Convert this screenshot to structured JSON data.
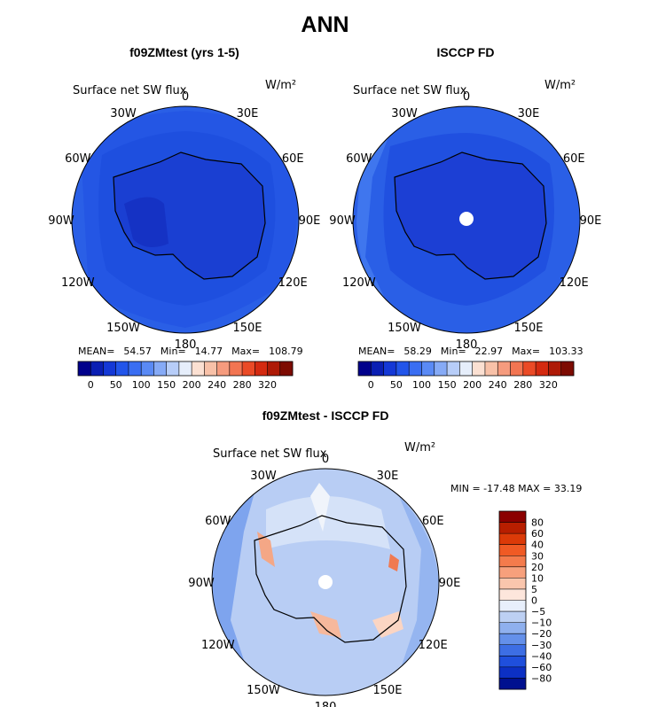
{
  "title": "ANN",
  "panels": [
    {
      "title": "f09ZMtest (yrs 1-5)",
      "variable": "Surface net SW flux",
      "units": "W/m²",
      "stats": {
        "mean_label": "MEAN=",
        "mean": "54.57",
        "min_label": "Min=",
        "min": "14.77",
        "max_label": "Max=",
        "max": "108.79"
      }
    },
    {
      "title": "ISCCP FD",
      "variable": "Surface net SW flux",
      "units": "W/m²",
      "stats": {
        "mean_label": "MEAN=",
        "mean": "58.29",
        "min_label": "Min=",
        "min": "22.97",
        "max_label": "Max=",
        "max": "103.33"
      }
    },
    {
      "title": "f09ZMtest - ISCCP FD",
      "variable": "Surface net SW flux",
      "units": "W/m²",
      "stats_text": "MIN = -17.48 MAX =   33.19"
    }
  ],
  "longitude_labels": [
    "0",
    "30E",
    "60E",
    "90E",
    "120E",
    "150E",
    "180",
    "150W",
    "120W",
    "90W",
    "60W",
    "30W"
  ],
  "colorbar_abs": {
    "tick_labels": [
      "0",
      "50",
      "100",
      "150",
      "200",
      "240",
      "280",
      "320"
    ],
    "colors": [
      "#00008b",
      "#0a1fb3",
      "#1438d6",
      "#2255ea",
      "#3a6ef2",
      "#5a8af5",
      "#86aaf6",
      "#b7cdf8",
      "#e6eefb",
      "#fbe0d2",
      "#f8c1a8",
      "#f59b7e",
      "#f27552",
      "#ea4a26",
      "#d42a10",
      "#ae1a06",
      "#7d0b02"
    ]
  },
  "colorbar_diff": {
    "tick_labels": [
      "80",
      "60",
      "40",
      "30",
      "20",
      "10",
      "5",
      "0",
      "−5",
      "−10",
      "−20",
      "−30",
      "−40",
      "−60",
      "−80"
    ],
    "colors": [
      "#8b0000",
      "#b81e00",
      "#dc3a08",
      "#f05a24",
      "#f47b4c",
      "#f7a07c",
      "#fac6ad",
      "#fde6dc",
      "#e8effb",
      "#bdd0f3",
      "#8fb0ee",
      "#6490ea",
      "#3d6ee4",
      "#1f4fdc",
      "#0c30c4",
      "#00108f"
    ]
  }
}
